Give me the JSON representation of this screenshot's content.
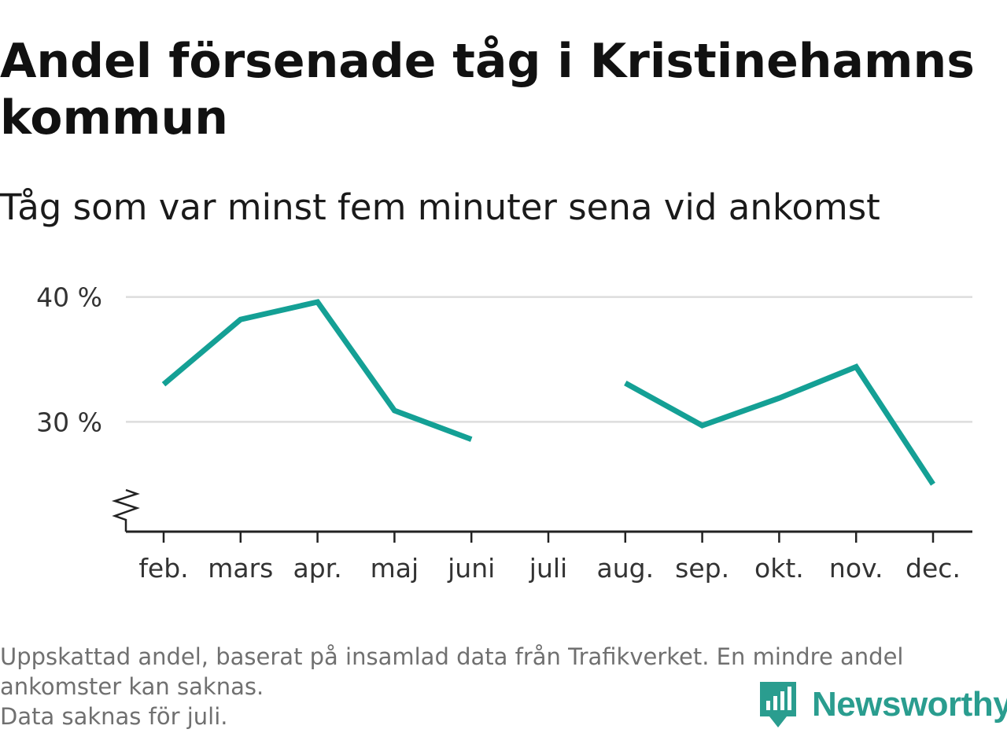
{
  "header": {
    "title": "Andel försenade tåg i Kristinehamns kommun",
    "subtitle": "Tåg som var minst fem minuter sena vid ankomst"
  },
  "chart_data": {
    "type": "line",
    "categories": [
      "feb.",
      "mars",
      "apr.",
      "maj",
      "juni",
      "juli",
      "aug.",
      "sep.",
      "okt.",
      "nov.",
      "dec."
    ],
    "series": [
      {
        "values": [
          33.0,
          38.2,
          39.6,
          30.9,
          28.6,
          null,
          33.1,
          29.7,
          31.9,
          34.4,
          25.0
        ],
        "color": "#14a095"
      }
    ],
    "y_ticks": [
      30,
      40
    ],
    "y_tick_labels": [
      "30 %",
      "40 %"
    ],
    "ylim": [
      21.2,
      43
    ],
    "y_axis_broken": true,
    "grid": "horizontal",
    "gridline_color": "#dddddd",
    "axis_color": "#222222"
  },
  "footnote": {
    "lines": [
      "Uppskattad andel, baserat på insamlad data från Trafikverket. En mindre andel",
      "ankomster kan saknas.",
      "Data saknas för juli."
    ]
  },
  "logo": {
    "text": "Newsworthy",
    "icon": "newsworthy-logo-icon",
    "color": "#2a9d8f"
  }
}
